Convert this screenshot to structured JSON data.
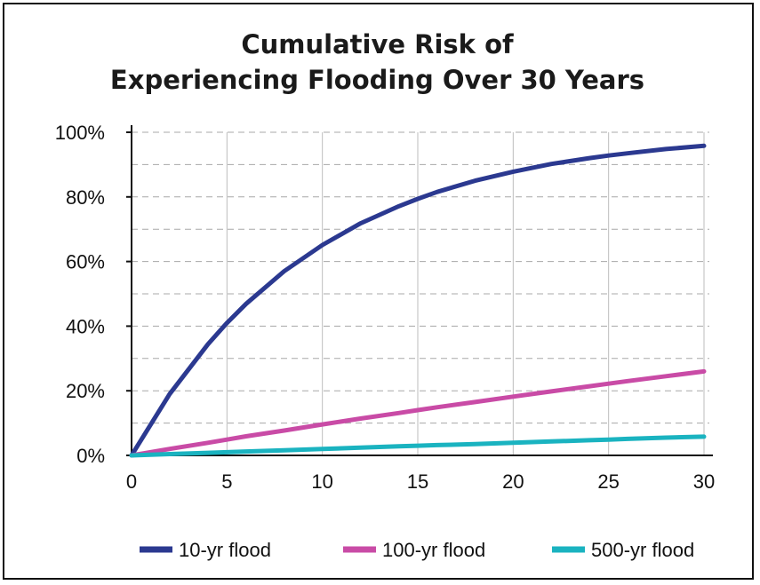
{
  "chart_data": {
    "type": "line",
    "title_line1": "Cumulative Risk of",
    "title_line2": "Experiencing Flooding Over 30 Years",
    "xlabel": "",
    "ylabel": "",
    "xlim": [
      0,
      30
    ],
    "ylim": [
      0,
      100
    ],
    "x_ticks": [
      0,
      5,
      10,
      15,
      20,
      25,
      30
    ],
    "y_ticks": [
      0,
      20,
      40,
      60,
      80,
      100
    ],
    "y_tick_suffix": "%",
    "grid": true,
    "legend_position": "bottom",
    "x": [
      0,
      2,
      4,
      5,
      6,
      8,
      10,
      12,
      14,
      15,
      16,
      18,
      20,
      22,
      24,
      25,
      26,
      28,
      30
    ],
    "series": [
      {
        "name": "10-yr flood",
        "color": "#2b3990",
        "values": [
          0,
          19,
          34.4,
          41,
          46.9,
          57,
          65.1,
          71.8,
          77.1,
          79.4,
          81.5,
          85,
          87.8,
          90.2,
          92,
          92.8,
          93.5,
          94.8,
          95.8
        ]
      },
      {
        "name": "100-yr flood",
        "color": "#c94ba6",
        "values": [
          0,
          2,
          3.9,
          4.9,
          5.9,
          7.7,
          9.6,
          11.4,
          13.1,
          14,
          14.9,
          16.5,
          18.2,
          19.8,
          21.4,
          22.2,
          23,
          24.5,
          26
        ]
      },
      {
        "name": "500-yr flood",
        "color": "#1ab3c0",
        "values": [
          0,
          0.4,
          0.8,
          1,
          1.2,
          1.6,
          2,
          2.4,
          2.8,
          3,
          3.2,
          3.5,
          3.9,
          4.3,
          4.7,
          4.9,
          5.1,
          5.5,
          5.8
        ]
      }
    ]
  }
}
